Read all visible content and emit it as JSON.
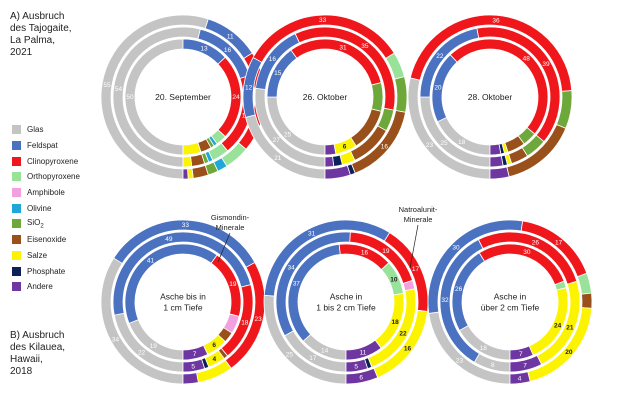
{
  "section_a_title": "A) Ausbruch\ndes Tajogaite,\nLa Palma,\n2021",
  "section_b_title": "B) Ausbruch\ndes Kilauea,\nHawaii,\n2018",
  "legend": [
    {
      "label": "Glas",
      "color": "#c4c4c4"
    },
    {
      "label": "Feldspat",
      "color": "#4a72c0"
    },
    {
      "label": "Clinopyroxene",
      "color": "#f0171c"
    },
    {
      "label": "Orthopyroxene",
      "color": "#98e29a"
    },
    {
      "label": "Amphibole",
      "color": "#f49fe0"
    },
    {
      "label": "Olivine",
      "color": "#1ea7d8"
    },
    {
      "label": "SiO",
      "sub": "2",
      "color": "#6fa83a"
    },
    {
      "label": "Eisenoxide",
      "color": "#99501a"
    },
    {
      "label": "Salze",
      "color": "#fcf301"
    },
    {
      "label": "Phosphate",
      "color": "#0d2157"
    },
    {
      "label": "Andere",
      "color": "#6e36a0"
    }
  ],
  "annotations": {
    "gismondin": "Gismondin-\nMinerale",
    "natroalunit": "Natroalunit-\nMinerale"
  },
  "chart_data": [
    {
      "type": "donut",
      "center_label": "20. September",
      "categories": [
        "Glas",
        "Feldspat",
        "Clinopyroxene",
        "Orthopyroxene",
        "Amphibole",
        "Olivine",
        "SiO2",
        "Eisenoxide",
        "Salze",
        "Phosphate",
        "Andere"
      ],
      "rings": [
        {
          "values": [
            55,
            11,
            20,
            5,
            0,
            2,
            2,
            3,
            1,
            0,
            1
          ],
          "labels": [
            "55",
            "11",
            "20",
            "",
            "",
            "",
            "",
            "",
            "",
            "",
            ""
          ]
        },
        {
          "values": [
            54,
            16,
            19,
            4,
            0,
            1,
            1,
            3,
            2,
            0,
            0
          ],
          "labels": [
            "54",
            "16",
            "19",
            "",
            "",
            "",
            "",
            "",
            "",
            "",
            ""
          ]
        },
        {
          "values": [
            50,
            13,
            24,
            3,
            0,
            1,
            1,
            3,
            5,
            0,
            0
          ],
          "labels": [
            "50",
            "13",
            "24",
            "",
            "",
            "",
            "",
            "",
            "",
            "",
            ""
          ]
        }
      ]
    },
    {
      "type": "donut",
      "center_label": "26. Oktober",
      "categories": [
        "Glas",
        "Feldspat",
        "Clinopyroxene",
        "Orthopyroxene",
        "Amphibole",
        "Olivine",
        "SiO2",
        "Eisenoxide",
        "Salze",
        "Phosphate",
        "Andere"
      ],
      "rings": [
        {
          "values": [
            21,
            12,
            33,
            5,
            0,
            0,
            7,
            16,
            0,
            1,
            5
          ],
          "labels": [
            "21",
            "12",
            "33",
            "",
            "",
            "",
            "",
            "16",
            "",
            "",
            ""
          ]
        },
        {
          "values": [
            27,
            16,
            35,
            0,
            0,
            0,
            5,
            10,
            3,
            2,
            2
          ],
          "labels": [
            "27",
            "16",
            "35",
            "",
            "",
            "",
            "",
            "",
            "",
            "",
            ""
          ]
        },
        {
          "values": [
            25,
            15,
            31,
            0,
            0,
            0,
            8,
            12,
            6,
            0,
            3
          ],
          "labels": [
            "25",
            "15",
            "31",
            "",
            "",
            "",
            "",
            "",
            "6",
            "",
            ""
          ]
        }
      ]
    },
    {
      "type": "donut",
      "center_label": "28. Oktober",
      "categories": [
        "Glas",
        "Feldspat",
        "Clinopyroxene",
        "Orthopyroxene",
        "Amphibole",
        "Olivine",
        "SiO2",
        "Eisenoxide",
        "Salze",
        "Phosphate",
        "Andere"
      ],
      "rings": [
        {
          "values": [
            23,
            0,
            36,
            0,
            0,
            0,
            6,
            12,
            0,
            0,
            3
          ],
          "labels": [
            "23",
            "",
            "36",
            "",
            "",
            "",
            "",
            "",
            "",
            "",
            ""
          ]
        },
        {
          "values": [
            25,
            22,
            39,
            0,
            0,
            0,
            5,
            4,
            1,
            1,
            3
          ],
          "labels": [
            "25",
            "22",
            "39",
            "",
            "",
            "",
            "",
            "",
            "",
            "",
            ""
          ]
        },
        {
          "values": [
            18,
            20,
            48,
            0,
            0,
            0,
            4,
            5,
            1,
            1,
            3
          ],
          "labels": [
            "18",
            "20",
            "48",
            "",
            "",
            "",
            "",
            "",
            "",
            "",
            ""
          ]
        }
      ]
    },
    {
      "type": "donut",
      "center_label": "Asche bis in\n1 cm Tiefe",
      "categories": [
        "Glas",
        "Feldspat",
        "Clinopyroxene",
        "Orthopyroxene",
        "Amphibole",
        "Olivine",
        "SiO2",
        "Eisenoxide",
        "Salze",
        "Phosphate",
        "Andere"
      ],
      "rings": [
        {
          "values": [
            34,
            33,
            23,
            0,
            0,
            0,
            0,
            0,
            7,
            0,
            3
          ],
          "labels": [
            "34",
            "33",
            "23",
            "",
            "",
            "",
            "",
            "",
            "",
            "",
            ""
          ]
        },
        {
          "values": [
            22,
            49,
            18,
            0,
            0,
            0,
            0,
            1,
            4,
            1,
            5
          ],
          "labels": [
            "22",
            "49",
            "18",
            "",
            "",
            "",
            "",
            "",
            "4",
            "",
            "5"
          ]
        },
        {
          "values": [
            19,
            41,
            19,
            0,
            5,
            0,
            0,
            3,
            6,
            0,
            7
          ],
          "labels": [
            "19",
            "41",
            "19",
            "",
            "",
            "",
            "",
            "",
            "6",
            "",
            "7"
          ]
        }
      ]
    },
    {
      "type": "donut",
      "center_label": "Asche in\n1 bis 2 cm Tiefe",
      "categories": [
        "Glas",
        "Feldspat",
        "Clinopyroxene",
        "Orthopyroxene",
        "Amphibole",
        "Olivine",
        "SiO2",
        "Eisenoxide",
        "Salze",
        "Phosphate",
        "Andere"
      ],
      "rings": [
        {
          "values": [
            25,
            31,
            17,
            0,
            0,
            0,
            0,
            0,
            16,
            0,
            6
          ],
          "labels": [
            "25",
            "31",
            "17",
            "",
            "",
            "",
            "",
            "",
            "16",
            "",
            "6"
          ]
        },
        {
          "values": [
            17,
            34,
            19,
            0,
            2,
            0,
            0,
            0,
            22,
            1,
            5
          ],
          "labels": [
            "17",
            "34",
            "19",
            "",
            "",
            "",
            "",
            "",
            "22",
            "",
            "5"
          ]
        },
        {
          "values": [
            14,
            37,
            16,
            10,
            0,
            0,
            0,
            0,
            18,
            0,
            11
          ],
          "labels": [
            "14",
            "37",
            "16",
            "10",
            "",
            "",
            "",
            "",
            "18",
            "",
            "11"
          ]
        }
      ]
    },
    {
      "type": "donut",
      "center_label": "Asche in\nüber 2 cm Tiefe",
      "categories": [
        "Glas",
        "Feldspat",
        "Clinopyroxene",
        "Orthopyroxene",
        "Amphibole",
        "Olivine",
        "SiO2",
        "Eisenoxide",
        "Salze",
        "Phosphate",
        "Andere"
      ],
      "rings": [
        {
          "values": [
            23,
            30,
            17,
            4,
            0,
            0,
            0,
            3,
            20,
            0,
            4
          ],
          "labels": [
            "23",
            "30",
            "17",
            "",
            "",
            "",
            "",
            "",
            "20",
            "",
            "4"
          ]
        },
        {
          "values": [
            8,
            32,
            26,
            0,
            0,
            0,
            0,
            0,
            21,
            0,
            7
          ],
          "labels": [
            "8",
            "32",
            "26",
            "",
            "",
            "",
            "",
            "",
            "21",
            "",
            "7"
          ]
        },
        {
          "values": [
            18,
            26,
            30,
            2,
            0,
            0,
            0,
            0,
            24,
            0,
            7
          ],
          "labels": [
            "18",
            "26",
            "30",
            "",
            "",
            "",
            "",
            "",
            "24",
            "",
            "7"
          ]
        }
      ]
    }
  ]
}
